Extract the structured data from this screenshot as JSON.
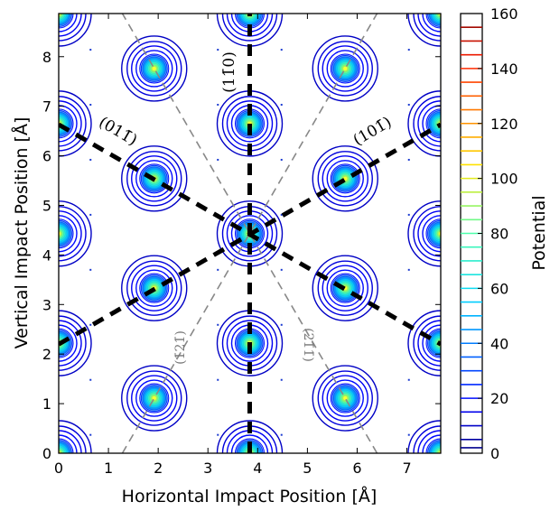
{
  "chart_data": {
    "type": "contour",
    "xlabel": "Horizontal Impact Position [Å]",
    "ylabel": "Vertical Impact Position [Å]",
    "xlim": [
      0,
      7.68
    ],
    "ylim": [
      0,
      8.87
    ],
    "x_ticks": [
      "0",
      "1",
      "2",
      "3",
      "4",
      "5",
      "6",
      "7"
    ],
    "y_ticks": [
      "0",
      "1",
      "2",
      "3",
      "4",
      "5",
      "6",
      "7",
      "8"
    ],
    "colorbar": {
      "label": "Potential",
      "range": [
        0,
        160
      ],
      "ticks": [
        "0",
        "20",
        "40",
        "60",
        "80",
        "100",
        "120",
        "140",
        "160"
      ],
      "levels": [
        2,
        5,
        10,
        15,
        20,
        25,
        30,
        35,
        40,
        45,
        50,
        55,
        60,
        65,
        70,
        75,
        80,
        85,
        90,
        95,
        100,
        105,
        110,
        115,
        120,
        125,
        130,
        135,
        140,
        145,
        150,
        155
      ]
    },
    "atoms": [
      {
        "x": 0.0,
        "y": 0.0
      },
      {
        "x": 3.84,
        "y": 0.0
      },
      {
        "x": 7.68,
        "y": 0.0
      },
      {
        "x": 1.92,
        "y": 1.11
      },
      {
        "x": 5.76,
        "y": 1.11
      },
      {
        "x": 0.0,
        "y": 2.22
      },
      {
        "x": 3.84,
        "y": 2.22
      },
      {
        "x": 7.68,
        "y": 2.22
      },
      {
        "x": 1.92,
        "y": 3.33
      },
      {
        "x": 5.76,
        "y": 3.33
      },
      {
        "x": 0.0,
        "y": 4.43
      },
      {
        "x": 3.84,
        "y": 4.43
      },
      {
        "x": 7.68,
        "y": 4.43
      },
      {
        "x": 1.92,
        "y": 5.54
      },
      {
        "x": 5.76,
        "y": 5.54
      },
      {
        "x": 0.0,
        "y": 6.65
      },
      {
        "x": 3.84,
        "y": 6.65
      },
      {
        "x": 7.68,
        "y": 6.65
      },
      {
        "x": 1.92,
        "y": 7.76
      },
      {
        "x": 5.76,
        "y": 7.76
      },
      {
        "x": 0.0,
        "y": 8.87
      },
      {
        "x": 3.84,
        "y": 8.87
      },
      {
        "x": 7.68,
        "y": 8.87
      }
    ],
    "lattice_sites": [
      {
        "x": 0.64,
        "y": 0.37
      },
      {
        "x": 3.2,
        "y": 0.37
      },
      {
        "x": 4.48,
        "y": 0.37
      },
      {
        "x": 7.04,
        "y": 0.37
      },
      {
        "x": 0.64,
        "y": 1.48
      },
      {
        "x": 3.2,
        "y": 1.48
      },
      {
        "x": 4.48,
        "y": 1.48
      },
      {
        "x": 7.04,
        "y": 1.48
      },
      {
        "x": 0.64,
        "y": 2.59
      },
      {
        "x": 3.2,
        "y": 2.59
      },
      {
        "x": 4.48,
        "y": 2.59
      },
      {
        "x": 7.04,
        "y": 2.59
      },
      {
        "x": 0.64,
        "y": 3.7
      },
      {
        "x": 3.2,
        "y": 3.7
      },
      {
        "x": 4.48,
        "y": 3.7
      },
      {
        "x": 7.04,
        "y": 3.7
      },
      {
        "x": 0.64,
        "y": 4.81
      },
      {
        "x": 3.2,
        "y": 4.81
      },
      {
        "x": 4.48,
        "y": 4.81
      },
      {
        "x": 7.04,
        "y": 4.81
      },
      {
        "x": 0.64,
        "y": 5.92
      },
      {
        "x": 3.2,
        "y": 5.92
      },
      {
        "x": 4.48,
        "y": 5.92
      },
      {
        "x": 7.04,
        "y": 5.92
      },
      {
        "x": 0.64,
        "y": 7.03
      },
      {
        "x": 3.2,
        "y": 7.03
      },
      {
        "x": 4.48,
        "y": 7.03
      },
      {
        "x": 7.04,
        "y": 7.03
      },
      {
        "x": 0.64,
        "y": 8.14
      },
      {
        "x": 3.2,
        "y": 8.14
      },
      {
        "x": 4.48,
        "y": 8.14
      },
      {
        "x": 7.04,
        "y": 8.14
      }
    ],
    "planes_thick": [
      {
        "name": "(11̄0)",
        "from": [
          3.84,
          0.0
        ],
        "to": [
          3.84,
          8.87
        ]
      },
      {
        "name": "(101̄)",
        "from": [
          0.0,
          2.2
        ],
        "to": [
          7.68,
          6.63
        ]
      },
      {
        "name": "(011̄)",
        "from": [
          0.0,
          6.63
        ],
        "to": [
          7.68,
          2.2
        ]
      }
    ],
    "planes_dashed": [
      {
        "name": "(1̄21̄)",
        "from": [
          1.28,
          0.0
        ],
        "to": [
          6.4,
          8.87
        ]
      },
      {
        "name": "(21̄1̄)",
        "from": [
          6.4,
          0.0
        ],
        "to": [
          1.28,
          8.87
        ]
      }
    ],
    "plane_labels": {
      "p110": "(11̄0)",
      "p101": "(101̄)",
      "p011": "(011̄)",
      "p121": "(1̄21̄)",
      "p211": "(21̄1̄)"
    }
  }
}
